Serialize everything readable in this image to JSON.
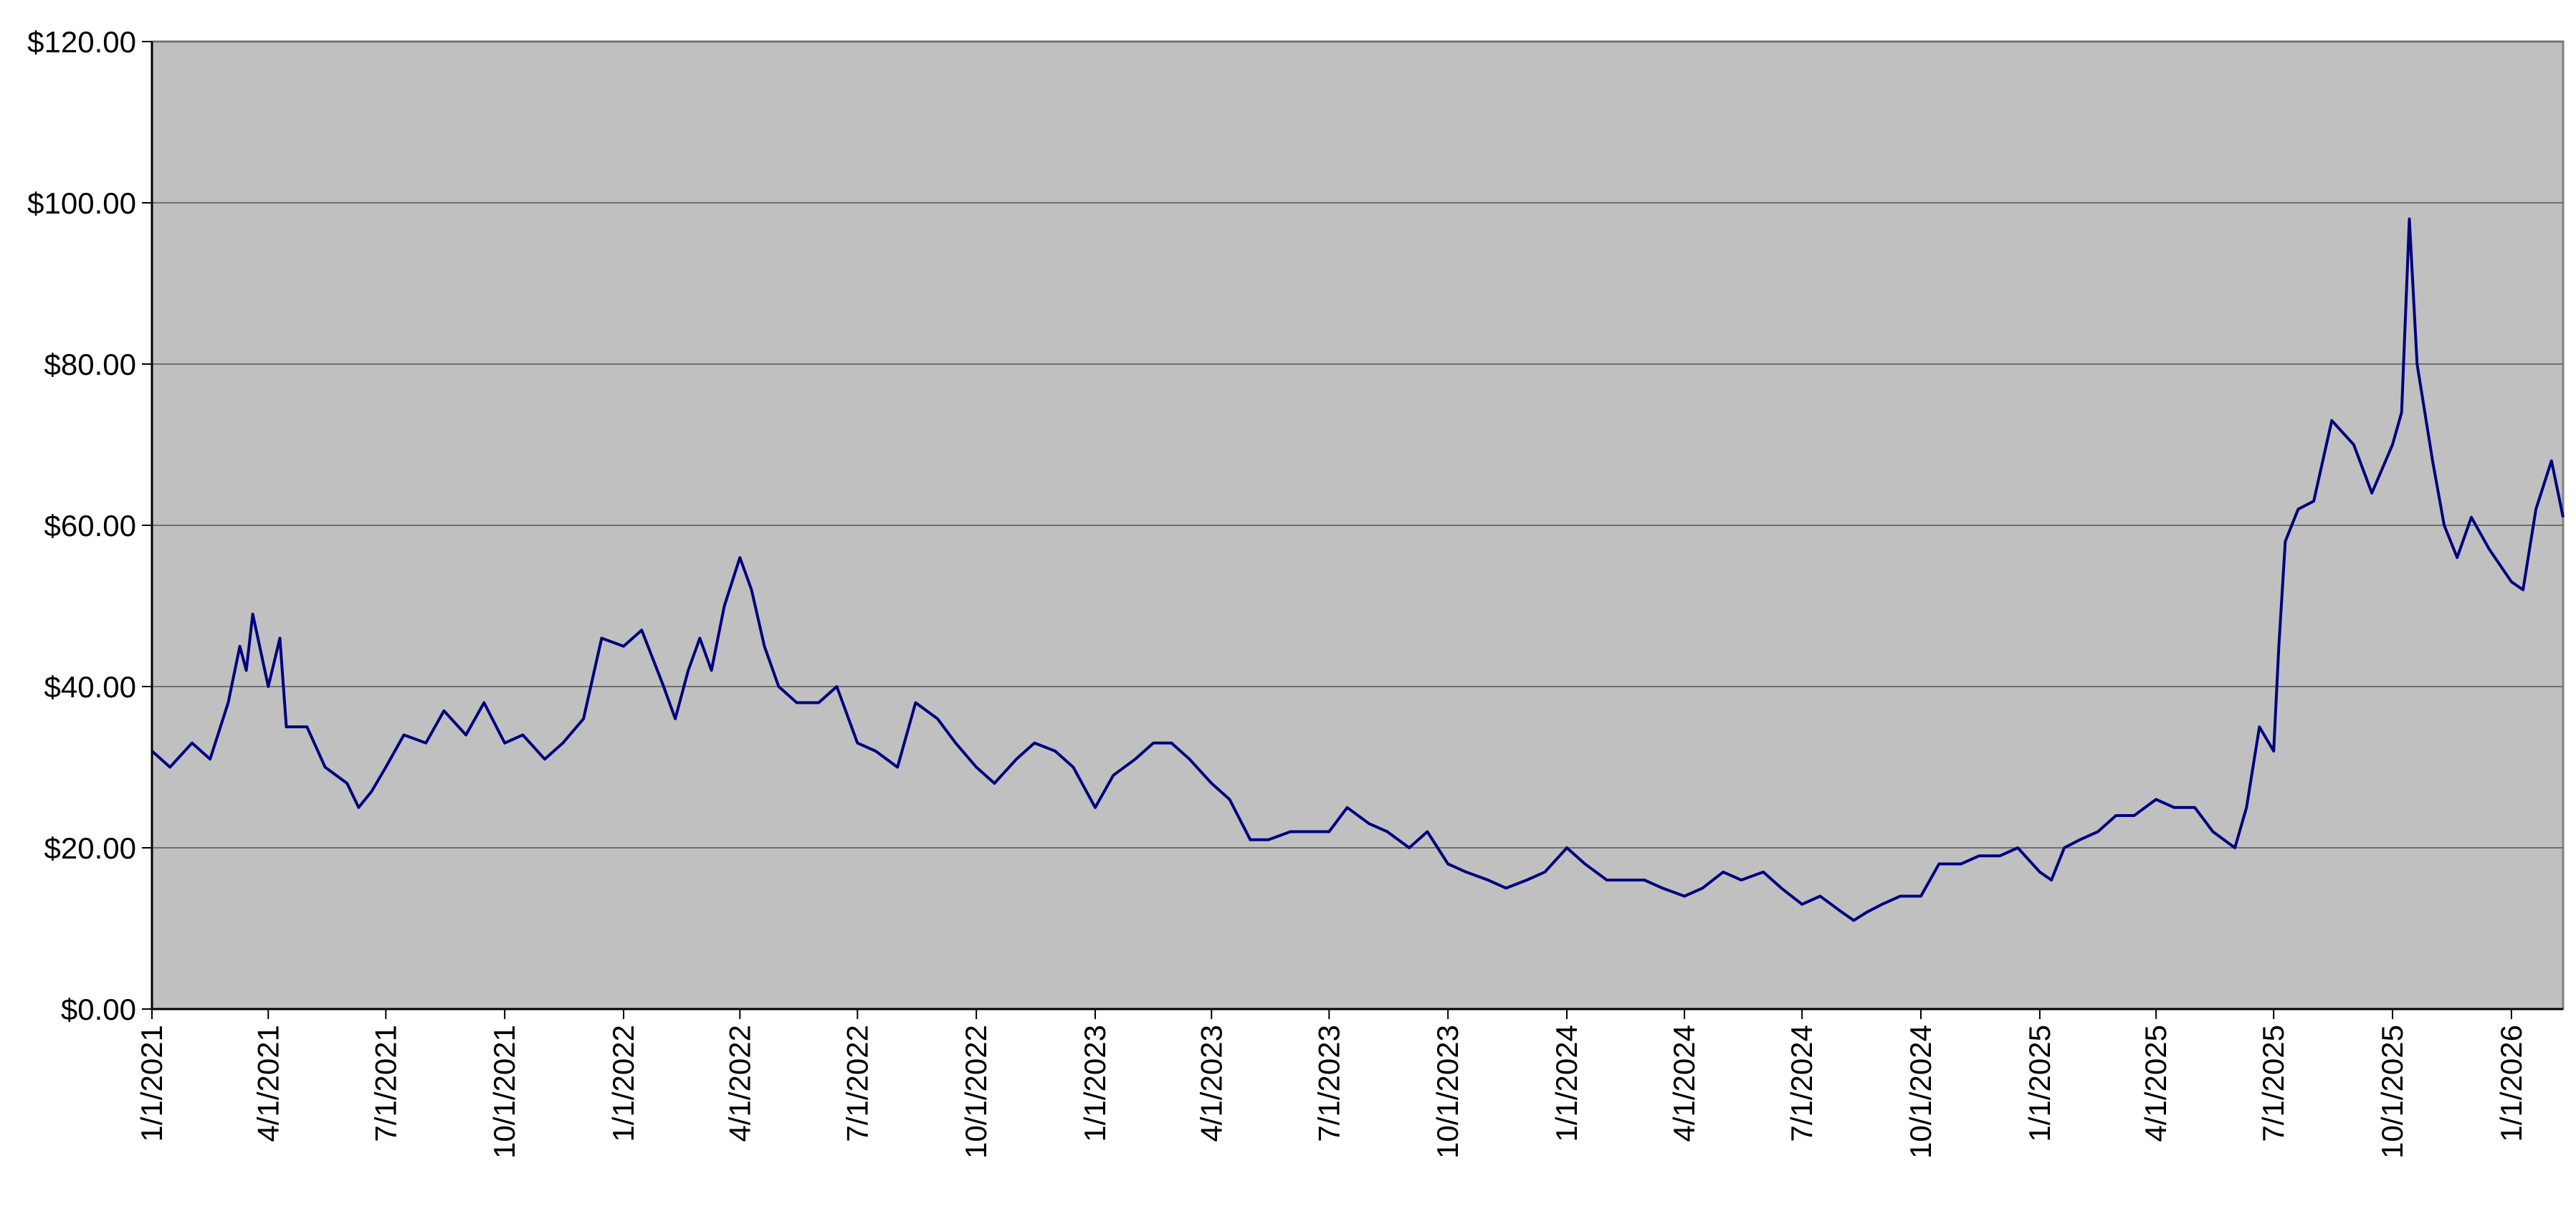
{
  "chart_data": {
    "type": "line",
    "color": "#000080",
    "grid": true,
    "x": [
      "1/1/2021",
      "1/15/2021",
      "2/1/2021",
      "2/15/2021",
      "3/1/2021",
      "3/10/2021",
      "3/15/2021",
      "3/20/2021",
      "4/1/2021",
      "4/10/2021",
      "4/15/2021",
      "5/1/2021",
      "5/15/2021",
      "6/1/2021",
      "6/10/2021",
      "6/20/2021",
      "7/1/2021",
      "7/15/2021",
      "8/1/2021",
      "8/15/2021",
      "9/1/2021",
      "9/15/2021",
      "10/1/2021",
      "10/15/2021",
      "11/1/2021",
      "11/15/2021",
      "12/1/2021",
      "12/15/2021",
      "1/1/2022",
      "1/15/2022",
      "2/1/2022",
      "2/10/2022",
      "2/20/2022",
      "3/1/2022",
      "3/10/2022",
      "3/20/2022",
      "4/1/2022",
      "4/10/2022",
      "4/20/2022",
      "5/1/2022",
      "5/15/2022",
      "6/1/2022",
      "6/15/2022",
      "7/1/2022",
      "7/15/2022",
      "8/1/2022",
      "8/15/2022",
      "9/1/2022",
      "9/15/2022",
      "10/1/2022",
      "10/15/2022",
      "11/1/2022",
      "11/15/2022",
      "12/1/2022",
      "12/15/2022",
      "1/1/2023",
      "1/15/2023",
      "2/1/2023",
      "2/15/2023",
      "3/1/2023",
      "3/15/2023",
      "4/1/2023",
      "4/15/2023",
      "5/1/2023",
      "5/15/2023",
      "6/1/2023",
      "6/15/2023",
      "7/1/2023",
      "7/15/2023",
      "8/1/2023",
      "8/15/2023",
      "9/1/2023",
      "9/15/2023",
      "10/1/2023",
      "10/15/2023",
      "11/1/2023",
      "11/15/2023",
      "12/1/2023",
      "12/15/2023",
      "1/1/2024",
      "1/15/2024",
      "2/1/2024",
      "2/15/2024",
      "3/1/2024",
      "3/15/2024",
      "4/1/2024",
      "4/15/2024",
      "5/1/2024",
      "5/15/2024",
      "6/1/2024",
      "6/15/2024",
      "7/1/2024",
      "7/15/2024",
      "8/1/2024",
      "8/10/2024",
      "8/20/2024",
      "9/1/2024",
      "9/15/2024",
      "10/1/2024",
      "10/15/2024",
      "11/1/2024",
      "11/15/2024",
      "12/1/2024",
      "12/15/2024",
      "1/1/2025",
      "1/10/2025",
      "1/20/2025",
      "2/1/2025",
      "2/15/2025",
      "3/1/2025",
      "3/15/2025",
      "4/1/2025",
      "4/15/2025",
      "5/1/2025",
      "5/15/2025",
      "6/1/2025",
      "6/10/2025",
      "6/20/2025",
      "7/1/2025",
      "7/5/2025",
      "7/10/2025",
      "7/20/2025",
      "8/1/2025",
      "8/15/2025",
      "9/1/2025",
      "9/15/2025",
      "10/1/2025",
      "10/8/2025",
      "10/14/2025",
      "10/20/2025",
      "11/1/2025",
      "11/10/2025",
      "11/20/2025",
      "12/1/2025",
      "12/15/2025",
      "1/1/2026",
      "1/10/2026",
      "1/20/2026",
      "2/1/2026",
      "2/10/2026"
    ],
    "values": [
      32,
      30,
      33,
      31,
      38,
      45,
      42,
      49,
      40,
      46,
      35,
      35,
      30,
      28,
      25,
      27,
      30,
      34,
      33,
      37,
      34,
      38,
      33,
      34,
      31,
      33,
      36,
      46,
      45,
      47,
      40,
      36,
      42,
      46,
      42,
      50,
      56,
      52,
      45,
      40,
      38,
      38,
      40,
      33,
      32,
      30,
      38,
      36,
      33,
      30,
      28,
      31,
      33,
      32,
      30,
      25,
      29,
      31,
      33,
      33,
      31,
      28,
      26,
      21,
      21,
      22,
      22,
      22,
      25,
      23,
      22,
      20,
      22,
      18,
      17,
      16,
      15,
      16,
      17,
      20,
      18,
      16,
      16,
      16,
      15,
      14,
      15,
      17,
      16,
      17,
      15,
      13,
      14,
      12,
      11,
      12,
      13,
      14,
      14,
      18,
      18,
      19,
      19,
      20,
      17,
      16,
      20,
      21,
      22,
      24,
      24,
      26,
      25,
      25,
      22,
      20,
      25,
      35,
      32,
      45,
      58,
      62,
      63,
      73,
      70,
      64,
      70,
      74,
      98,
      80,
      68,
      60,
      56,
      61,
      57,
      53,
      52,
      62,
      68,
      61
    ],
    "xlim": [
      "1/1/2021",
      "2/10/2026"
    ],
    "xticks": [
      "1/1/2021",
      "4/1/2021",
      "7/1/2021",
      "10/1/2021",
      "1/1/2022",
      "4/1/2022",
      "7/1/2022",
      "10/1/2022",
      "1/1/2023",
      "4/1/2023",
      "7/1/2023",
      "10/1/2023",
      "1/1/2024",
      "4/1/2024",
      "7/1/2024",
      "10/1/2024",
      "1/1/2025",
      "4/1/2025",
      "7/1/2025",
      "10/1/2025",
      "1/1/2026"
    ],
    "ylim": [
      0,
      120
    ],
    "yticks": [
      {
        "value": 0,
        "label": "$0.00"
      },
      {
        "value": 20,
        "label": "$20.00"
      },
      {
        "value": 40,
        "label": "$40.00"
      },
      {
        "value": 60,
        "label": "$60.00"
      },
      {
        "value": 80,
        "label": "$80.00"
      },
      {
        "value": 100,
        "label": "$100.00"
      },
      {
        "value": 120,
        "label": "$120.00"
      }
    ]
  }
}
